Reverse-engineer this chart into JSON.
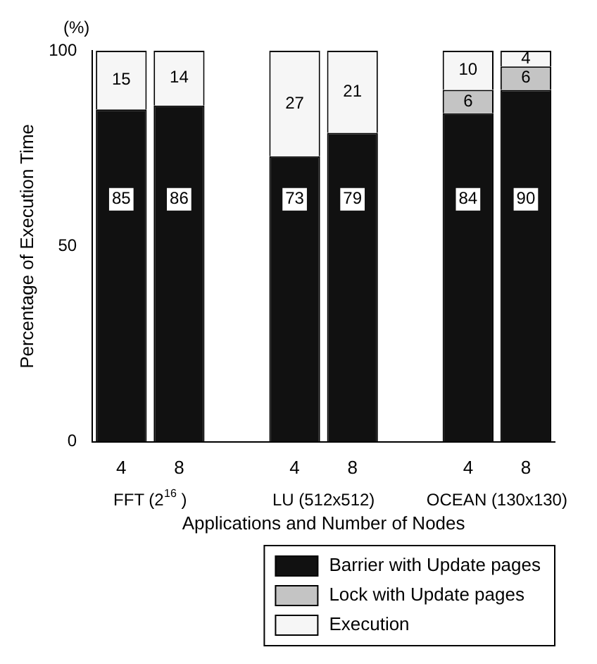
{
  "chart_data": {
    "type": "bar",
    "stacked": true,
    "ylabel": "Percentage of Execution Time",
    "xlabel": "Applications and Number of Nodes",
    "annotations": [
      "(%)",
      "FFT (2$^{16}$ )",
      "LU (512x512)",
      "OCEAN (130x130)"
    ],
    "categories": [
      "4",
      "8",
      null,
      "4",
      "8",
      null,
      "4",
      "8"
    ],
    "series": [
      {
        "name": "Barrier with Update pages",
        "color": "#111111",
        "values": [
          85,
          86,
          null,
          73,
          79,
          null,
          84,
          90
        ],
        "value_labels": [
          "85",
          "86",
          null,
          "73",
          "79",
          null,
          "84",
          "90"
        ]
      },
      {
        "name": "Lock with Update pages",
        "color": "#c4c4c4",
        "values": [
          0,
          0,
          null,
          0,
          0,
          null,
          6,
          6
        ],
        "value_labels": [
          null,
          null,
          null,
          null,
          null,
          null,
          "6",
          "6"
        ]
      },
      {
        "name": "Execution",
        "color": "#f6f6f6",
        "values": [
          15,
          14,
          null,
          27,
          21,
          null,
          10,
          4
        ],
        "value_labels": [
          "15",
          "14",
          null,
          "27",
          "21",
          null,
          "10",
          "4"
        ]
      }
    ],
    "ylim": [
      0,
      100
    ],
    "yticks": [
      0,
      50,
      100
    ],
    "legend": "bottom",
    "grid": false
  }
}
